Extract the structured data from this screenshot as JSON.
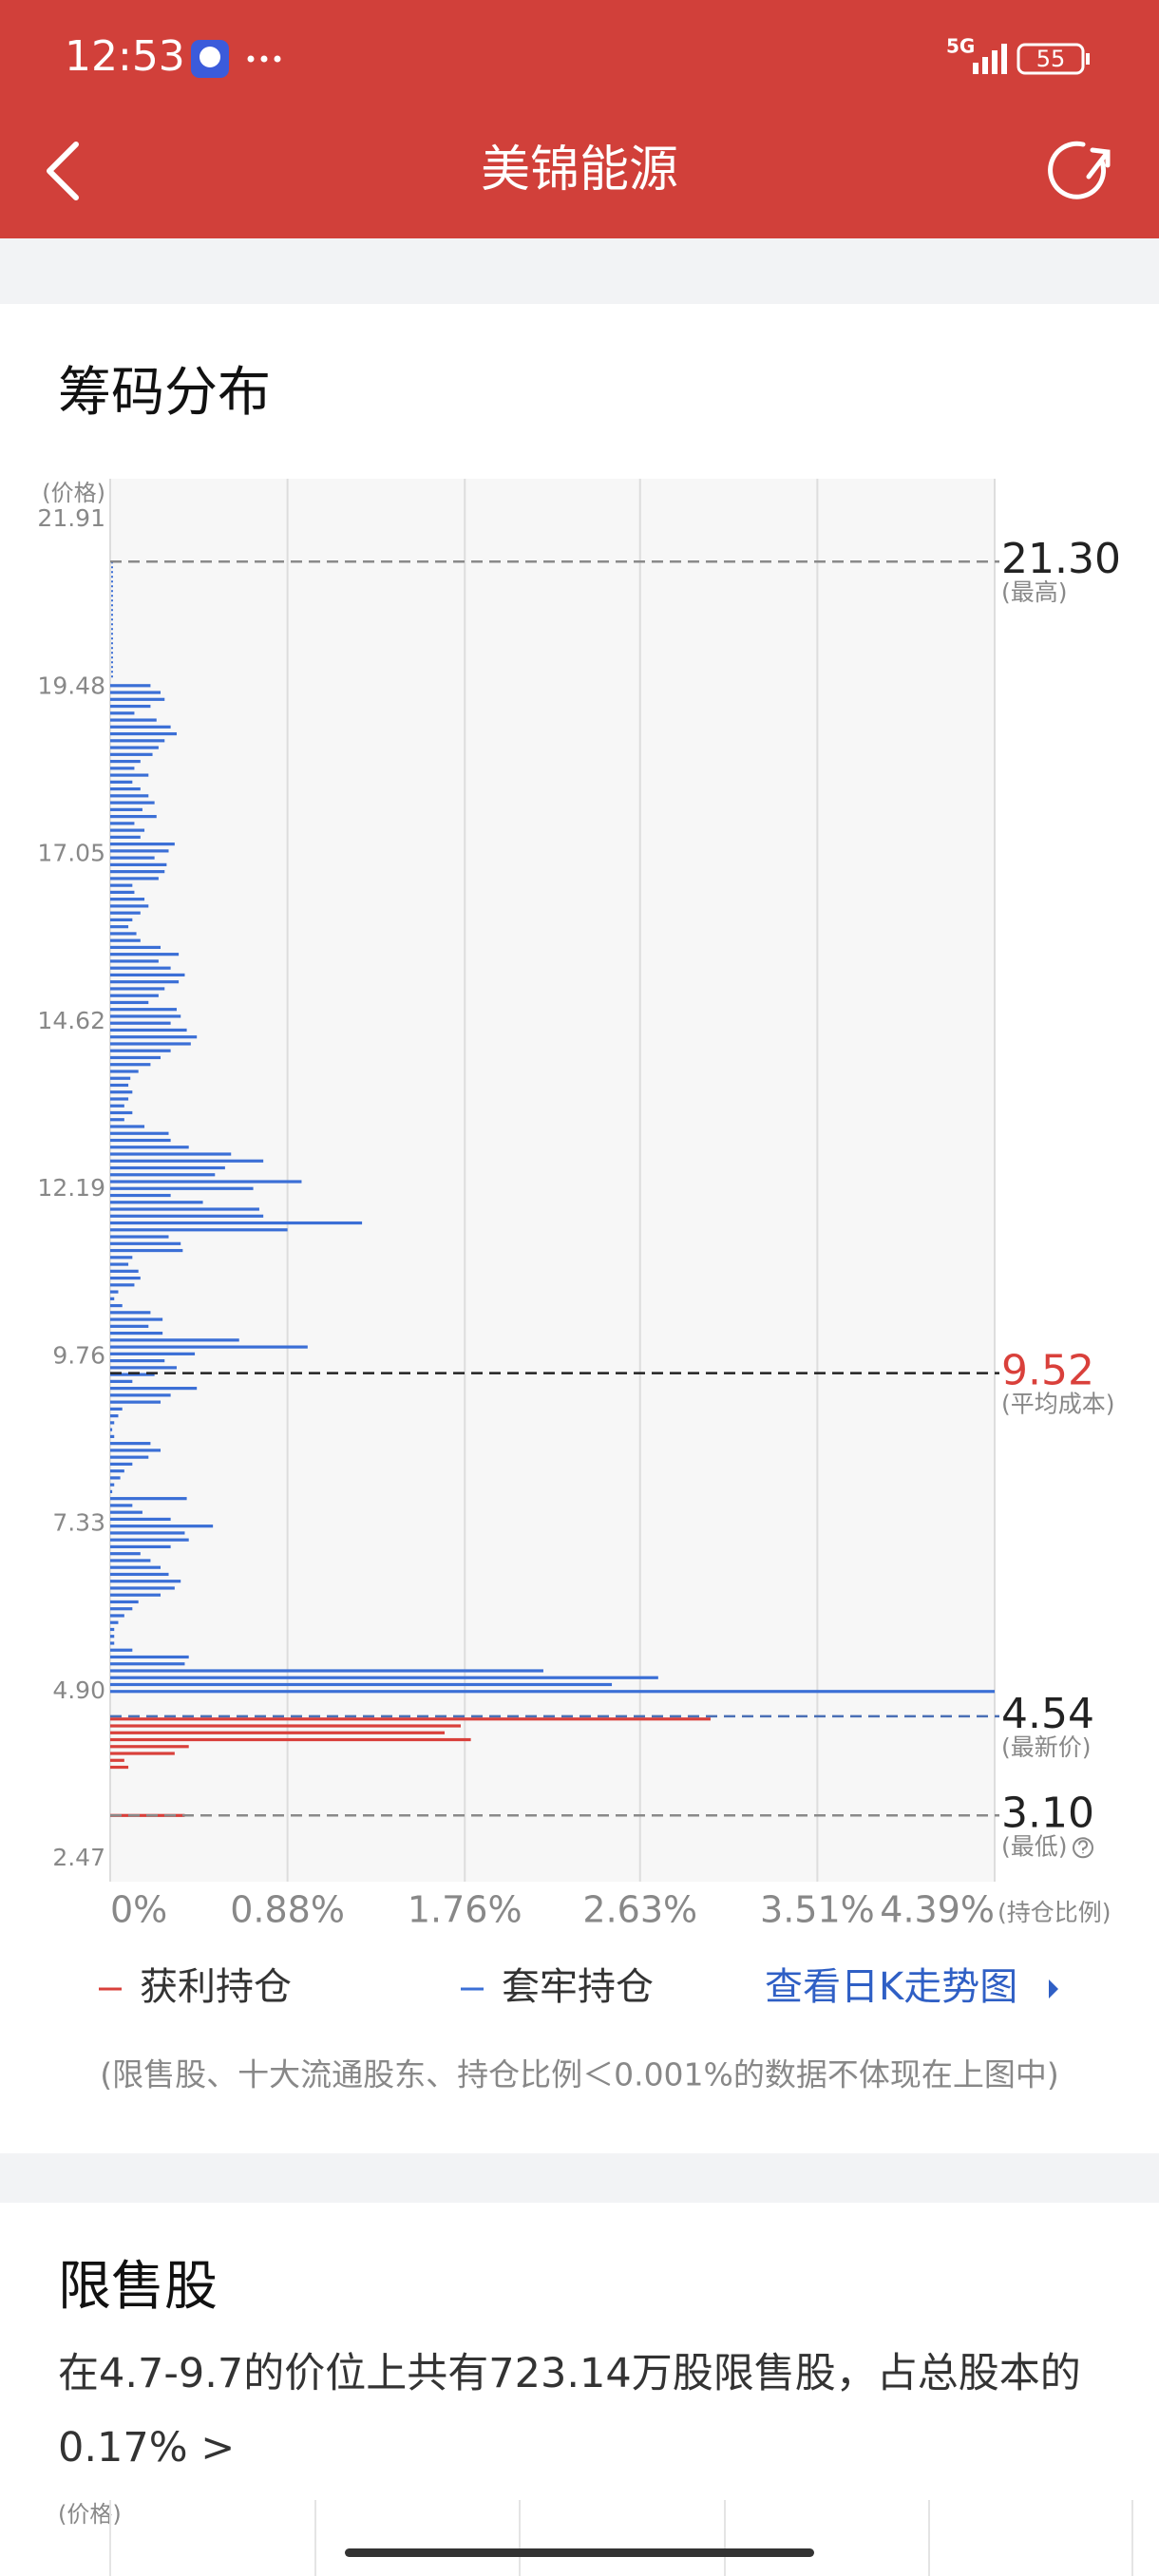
{
  "status": {
    "time": "12:53",
    "network": "5G",
    "battery": "55"
  },
  "header": {
    "title": "美锦能源"
  },
  "chip": {
    "title": "筹码分布",
    "chart_data": {
      "type": "bar",
      "orientation": "horizontal",
      "y_label": "(价格)",
      "x_label": "(持仓比例)",
      "ylim": [
        2.47,
        21.91
      ],
      "yticks": [
        21.91,
        19.48,
        17.05,
        14.62,
        12.19,
        9.76,
        7.33,
        {
          "value": 4.9,
          "label": "4.90"
        },
        2.47
      ],
      "xlim": [
        0,
        4.39
      ],
      "xticks": [
        {
          "value": 0,
          "label": "0%"
        },
        {
          "value": 0.88,
          "label": "0.88%"
        },
        {
          "value": 1.76,
          "label": "1.76%"
        },
        {
          "value": 2.63,
          "label": "2.63%"
        },
        {
          "value": 3.51,
          "label": "3.51%"
        },
        {
          "value": 4.39,
          "label": "4.39%"
        }
      ],
      "grid": true,
      "series": [
        {
          "name": "获利持仓",
          "color": "#d9403b",
          "y": [
            4.5,
            4.4,
            4.3,
            4.2,
            4.1,
            4,
            3.9,
            3.8,
            3.1
          ],
          "values": [
            2.98,
            1.74,
            1.66,
            1.79,
            0.39,
            0.32,
            0.07,
            0.09,
            0.37
          ]
        },
        {
          "name": "套牢持仓",
          "color": "#3b6fd6",
          "y": [
            19.5,
            19.4,
            19.3,
            19.2,
            19.1,
            19,
            18.9,
            18.8,
            18.7,
            18.6,
            18.5,
            18.4,
            18.3,
            18.2,
            18.1,
            18,
            17.9,
            17.8,
            17.7,
            17.6,
            17.5,
            17.4,
            17.3,
            17.2,
            17.1,
            17,
            16.9,
            16.8,
            16.7,
            16.6,
            16.5,
            16.4,
            16.3,
            16.2,
            16.1,
            16,
            15.9,
            15.8,
            15.7,
            15.6,
            15.5,
            15.4,
            15.3,
            15.2,
            15.1,
            15,
            14.9,
            14.8,
            14.7,
            14.6,
            14.5,
            14.4,
            14.3,
            14.2,
            14.1,
            14,
            13.9,
            13.8,
            13.7,
            13.6,
            13.5,
            13.4,
            13.3,
            13.2,
            13.1,
            13,
            12.9,
            12.8,
            12.7,
            12.6,
            12.5,
            12.4,
            12.3,
            12.2,
            12.1,
            12,
            11.9,
            11.8,
            11.7,
            11.6,
            11.5,
            11.4,
            11.3,
            11.2,
            11.1,
            11,
            10.9,
            10.8,
            10.7,
            10.6,
            10.5,
            10.4,
            10.3,
            10.2,
            10.1,
            10,
            9.9,
            9.8,
            9.7,
            9.6,
            9.5,
            9.4,
            9.3,
            9.2,
            9.1,
            9,
            8.9,
            8.8,
            8.7,
            8.6,
            8.5,
            8.4,
            8.3,
            8.2,
            8.1,
            8,
            7.9,
            7.8,
            7.7,
            7.6,
            7.5,
            7.4,
            7.3,
            7.2,
            7.1,
            7,
            6.9,
            6.8,
            6.7,
            6.6,
            6.5,
            6.4,
            6.3,
            6.2,
            6.1,
            6,
            5.9,
            5.8,
            5.7,
            5.6,
            5.5,
            5.4,
            5.3,
            5.2,
            5.1,
            5,
            4.9
          ],
          "values": [
            0.2,
            0.25,
            0.27,
            0.2,
            0.12,
            0.23,
            0.3,
            0.33,
            0.27,
            0.24,
            0.21,
            0.15,
            0.12,
            0.19,
            0.11,
            0.15,
            0.19,
            0.22,
            0.16,
            0.23,
            0.12,
            0.17,
            0.15,
            0.32,
            0.29,
            0.22,
            0.28,
            0.27,
            0.24,
            0.11,
            0.12,
            0.17,
            0.19,
            0.15,
            0.11,
            0.09,
            0.13,
            0.15,
            0.25,
            0.34,
            0.24,
            0.3,
            0.37,
            0.34,
            0.27,
            0.24,
            0.19,
            0.33,
            0.35,
            0.3,
            0.38,
            0.43,
            0.4,
            0.3,
            0.25,
            0.2,
            0.14,
            0.1,
            0.09,
            0.11,
            0.09,
            0.07,
            0.11,
            0.07,
            0.17,
            0.29,
            0.3,
            0.39,
            0.6,
            0.76,
            0.57,
            0.52,
            0.95,
            0.71,
            0.3,
            0.46,
            0.74,
            0.76,
            1.25,
            0.88,
            0.29,
            0.35,
            0.36,
            0.11,
            0.09,
            0.14,
            0.15,
            0.12,
            0.04,
            0.02,
            0.06,
            0.2,
            0.26,
            0.19,
            0.26,
            0.64,
            0.98,
            0.42,
            0.27,
            0.33,
            0.22,
            0.11,
            0.43,
            0.3,
            0.25,
            0.06,
            0.04,
            0.02,
            0.01,
            0.02,
            0.2,
            0.25,
            0.19,
            0.11,
            0.07,
            0.05,
            0.02,
            0.01,
            0.38,
            0.11,
            0.16,
            0.3,
            0.51,
            0.37,
            0.39,
            0.3,
            0.15,
            0.2,
            0.25,
            0.29,
            0.35,
            0.32,
            0.25,
            0.14,
            0.11,
            0.07,
            0.04,
            0.02,
            0.02,
            0.02,
            0.11,
            0.39,
            0.37,
            2.15,
            2.72,
            2.49,
            4.39
          ]
        }
      ],
      "reference_lines": [
        {
          "value": 21.3,
          "label": "21.30",
          "note": "(最高)",
          "color": "#8a8a8a",
          "label_color": "#222222"
        },
        {
          "value": 9.52,
          "note": "(平均成本)",
          "color": "#222222",
          "label_color": "#d9403b"
        },
        {
          "value": 4.54,
          "note": "(最新价)",
          "color": "#4a6fb5",
          "label_color": "#222222"
        },
        {
          "value": 3.1,
          "label": "3.10",
          "note": "(最低)",
          "color": "#8a8a8a",
          "label_color": "#222222"
        }
      ]
    },
    "link": "查看日K走势图",
    "note": "(限售股、十大流通股东、持仓比例＜0.001%的数据不体现在上图中)"
  },
  "restricted": {
    "title": "限售股",
    "text": "在4.7-9.7的价位上共有723.14万股限售股，占总股本的0.17% >",
    "axis_label": "(价格)"
  }
}
